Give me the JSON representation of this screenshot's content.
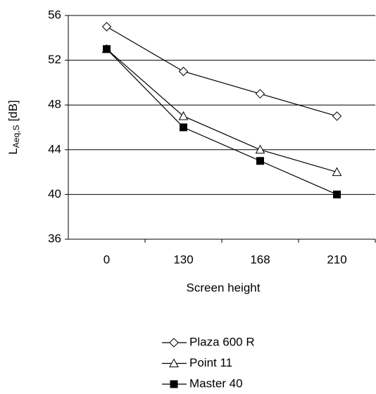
{
  "chart_data": {
    "type": "line",
    "ylabel": "L",
    "ylabel_sub": "Aeq,S",
    "ylabel_unit": "[dB]",
    "xlabel": "Screen height",
    "categories": [
      "0",
      "130",
      "168",
      "210"
    ],
    "ylim": [
      36,
      56
    ],
    "yticks": [
      36,
      40,
      44,
      48,
      52,
      56
    ],
    "grid": true,
    "legend": "bottom",
    "series": [
      {
        "name": "Plaza 600 R",
        "color": "#000000",
        "marker": "diamond",
        "marker_fill": "#ffffff",
        "values": [
          55,
          51,
          49,
          47
        ]
      },
      {
        "name": "Point 11",
        "color": "#000000",
        "marker": "triangle",
        "marker_fill": "#ffffff",
        "values": [
          53,
          47,
          44,
          42
        ]
      },
      {
        "name": "Master 40",
        "color": "#000000",
        "marker": "square",
        "marker_fill": "#000000",
        "values": [
          53,
          46,
          43,
          40
        ]
      }
    ]
  }
}
